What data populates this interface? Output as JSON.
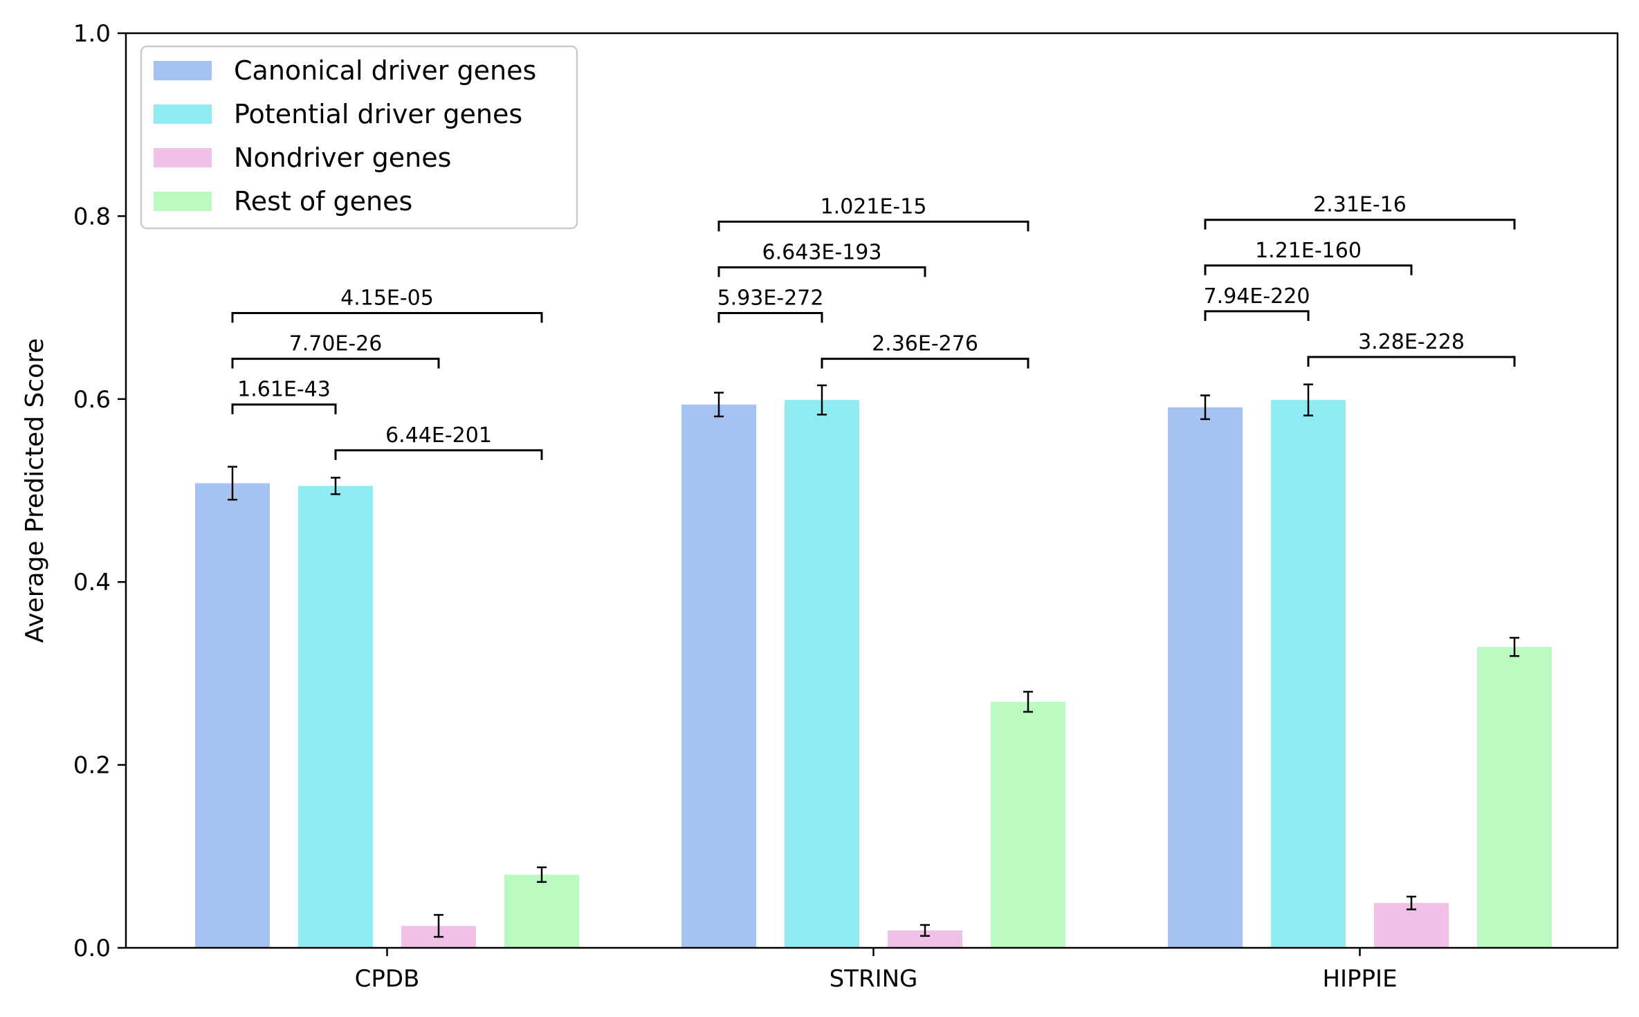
{
  "chart_data": {
    "type": "bar",
    "title": "",
    "xlabel": "",
    "ylabel": "Average Predicted Score",
    "ylim": [
      0,
      1.0
    ],
    "yticks": [
      "0.0",
      "0.2",
      "0.4",
      "0.6",
      "0.8",
      "1.0"
    ],
    "grid": false,
    "legend_position": "top-left",
    "categories": [
      "CPDB",
      "STRING",
      "HIPPIE"
    ],
    "series": [
      {
        "name": "Canonical driver genes",
        "color": "#a4c3f2",
        "values": [
          0.508,
          0.594,
          0.591
        ],
        "errors": [
          0.018,
          0.013,
          0.013
        ]
      },
      {
        "name": "Potential driver genes",
        "color": "#8eebf2",
        "values": [
          0.505,
          0.599,
          0.599
        ],
        "errors": [
          0.009,
          0.016,
          0.017
        ]
      },
      {
        "name": "Nondriver genes",
        "color": "#f0c0e7",
        "values": [
          0.024,
          0.019,
          0.049
        ],
        "errors": [
          0.012,
          0.006,
          0.007
        ]
      },
      {
        "name": "Rest of genes",
        "color": "#bafac0",
        "values": [
          0.08,
          0.269,
          0.329
        ],
        "errors": [
          0.008,
          0.011,
          0.01
        ]
      }
    ],
    "annotations": [
      {
        "category": 0,
        "from": 0,
        "to": 1,
        "y": 0.594,
        "label": "1.61E-43"
      },
      {
        "category": 0,
        "from": 0,
        "to": 2,
        "y": 0.644,
        "label": "7.70E-26"
      },
      {
        "category": 0,
        "from": 0,
        "to": 3,
        "y": 0.694,
        "label": "4.15E-05"
      },
      {
        "category": 0,
        "from": 1,
        "to": 3,
        "y": 0.544,
        "label": "6.44E-201"
      },
      {
        "category": 1,
        "from": 0,
        "to": 1,
        "y": 0.694,
        "label": "5.93E-272"
      },
      {
        "category": 1,
        "from": 0,
        "to": 2,
        "y": 0.744,
        "label": "6.643E-193"
      },
      {
        "category": 1,
        "from": 0,
        "to": 3,
        "y": 0.794,
        "label": "1.021E-15"
      },
      {
        "category": 1,
        "from": 1,
        "to": 3,
        "y": 0.644,
        "label": "2.36E-276"
      },
      {
        "category": 2,
        "from": 0,
        "to": 1,
        "y": 0.696,
        "label": "7.94E-220"
      },
      {
        "category": 2,
        "from": 0,
        "to": 2,
        "y": 0.746,
        "label": "1.21E-160"
      },
      {
        "category": 2,
        "from": 0,
        "to": 3,
        "y": 0.796,
        "label": "2.31E-16"
      },
      {
        "category": 2,
        "from": 1,
        "to": 3,
        "y": 0.646,
        "label": "3.28E-228"
      }
    ]
  }
}
